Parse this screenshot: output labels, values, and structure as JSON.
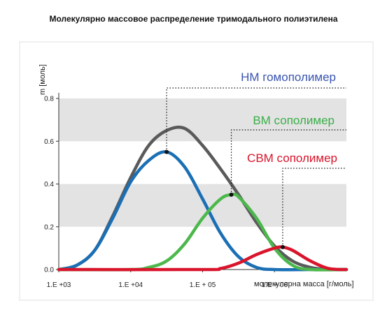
{
  "title": "Молекулярно массовое распределение  тримодального полиэтилена",
  "chart_data": {
    "type": "line",
    "title": "Молекулярно массовое распределение  тримодального полиэтилена",
    "xlabel": "молекулярна масса [г/моль]",
    "ylabel": "m [моль]",
    "x_scale": "log",
    "xlim": [
      1000,
      10000000
    ],
    "ylim": [
      0,
      0.8
    ],
    "x_ticks": [
      "1.E +03",
      "1.E +04",
      "1.E + 05",
      "1.E + 06"
    ],
    "x_tick_values": [
      1000,
      10000,
      100000,
      1000000
    ],
    "y_ticks": [
      "0.0",
      "0.2",
      "0.4",
      "0.6",
      "0.8"
    ],
    "y_tick_values": [
      0,
      0.2,
      0.4,
      0.6,
      0.8
    ],
    "grid_bands": [
      [
        0.2,
        0.4
      ],
      [
        0.6,
        0.8
      ]
    ],
    "legend": "annotations-right",
    "series": [
      {
        "name": "НМ гомополимер",
        "color": "#1a6fb5",
        "x": [
          1000,
          1780,
          3160,
          5620,
          10000,
          17800,
          31600,
          56200,
          100000,
          178000,
          316000,
          562000,
          1000000,
          3160000,
          10000000
        ],
        "y": [
          0.0,
          0.02,
          0.09,
          0.24,
          0.41,
          0.51,
          0.55,
          0.48,
          0.33,
          0.17,
          0.06,
          0.01,
          0.0,
          0.0,
          0.0
        ]
      },
      {
        "name": "ВМ сополимер",
        "color": "#4cb84c",
        "x": [
          1000,
          10000,
          17800,
          31600,
          56200,
          100000,
          178000,
          251000,
          316000,
          562000,
          1000000,
          1780000,
          3160000,
          10000000
        ],
        "y": [
          0.0,
          0.0,
          0.01,
          0.04,
          0.12,
          0.24,
          0.33,
          0.35,
          0.34,
          0.24,
          0.1,
          0.02,
          0.0,
          0.0
        ]
      },
      {
        "name": "СВМ сополимер",
        "color": "#d9142b",
        "x": [
          1000,
          100000,
          178000,
          316000,
          562000,
          1000000,
          1300000,
          1780000,
          3160000,
          5620000,
          10000000
        ],
        "y": [
          0.0,
          0.0,
          0.005,
          0.03,
          0.07,
          0.1,
          0.105,
          0.09,
          0.04,
          0.005,
          0.0
        ]
      },
      {
        "name": "",
        "color": "#5a5a5a",
        "x": [
          1000,
          1780,
          3160,
          5620,
          10000,
          17800,
          31600,
          56200,
          100000,
          178000,
          316000,
          562000,
          1000000,
          1780000,
          3160000,
          5620000,
          10000000
        ],
        "y": [
          0.0,
          0.02,
          0.09,
          0.25,
          0.43,
          0.58,
          0.65,
          0.66,
          0.58,
          0.47,
          0.35,
          0.22,
          0.11,
          0.04,
          0.01,
          0.0,
          0.0
        ]
      }
    ],
    "annotations": [
      {
        "text": "НМ гомополимер",
        "color": "#3a55b0",
        "x": 31600,
        "y": 0.55
      },
      {
        "text": "ВМ сополимер",
        "color": "#3aae48",
        "x": 251000,
        "y": 0.35
      },
      {
        "text": "СВМ сополимер",
        "color": "#d9142b",
        "x": 1300000,
        "y": 0.105
      }
    ]
  }
}
